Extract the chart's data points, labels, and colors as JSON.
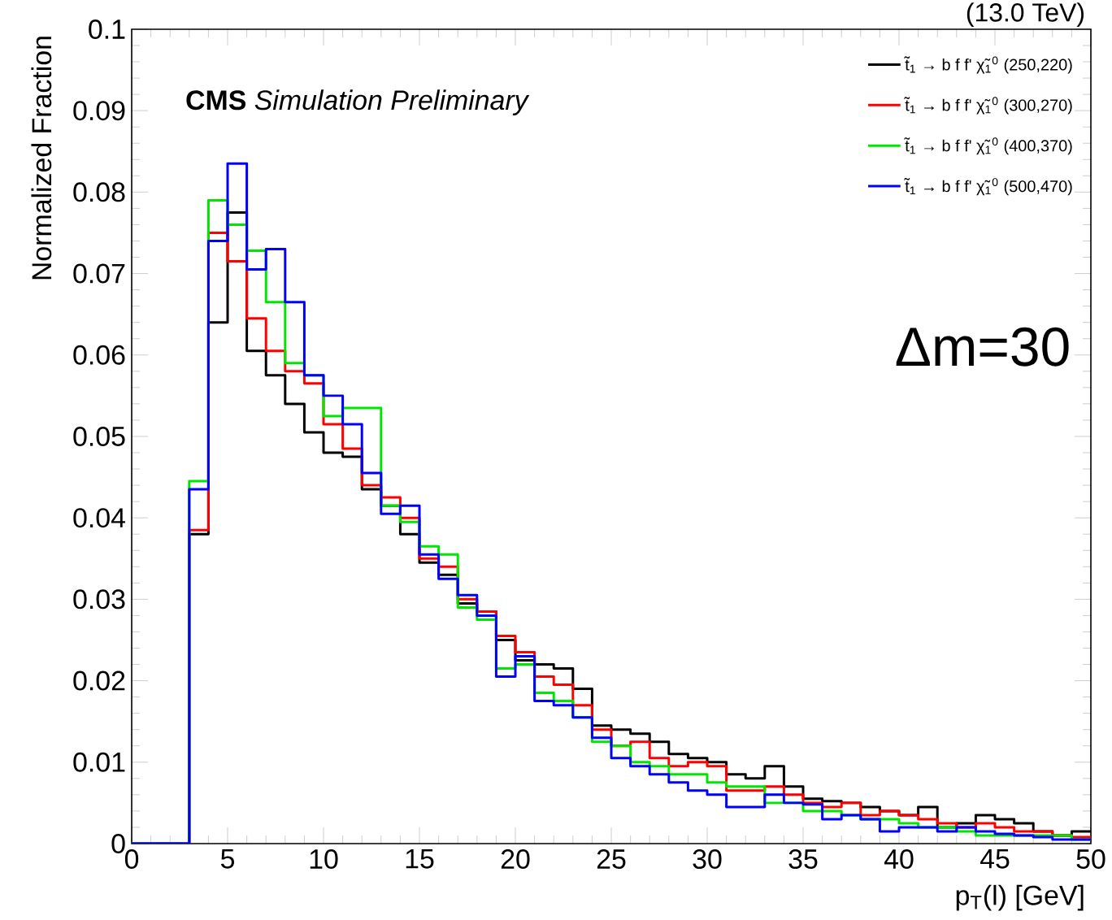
{
  "chart_data": {
    "type": "histogram",
    "xlabel": "p$_{T}$(l) [GeV]",
    "ylabel": "Normalized Fraction",
    "annotations": [
      "**CMS** *Simulation Preliminary*",
      "(13.0 TeV)",
      "Δm=30"
    ],
    "bins": [
      0,
      1,
      2,
      3,
      4,
      5,
      6,
      7,
      8,
      9,
      10,
      11,
      12,
      13,
      14,
      15,
      16,
      17,
      18,
      19,
      20,
      21,
      22,
      23,
      24,
      25,
      26,
      27,
      28,
      29,
      30,
      31,
      32,
      33,
      34,
      35,
      36,
      37,
      38,
      39,
      40,
      41,
      42,
      43,
      44,
      45,
      46,
      47,
      48,
      49,
      50
    ],
    "series": [
      {
        "name": "t̃$_{1}$ → b f f' χ̃$_{1}$$^{0}$ (250,220)",
        "color": "#000000",
        "values": [
          0,
          0,
          0,
          0.038,
          0.064,
          0.0775,
          0.0605,
          0.0575,
          0.054,
          0.0505,
          0.048,
          0.0475,
          0.0435,
          0.0415,
          0.038,
          0.0345,
          0.033,
          0.0295,
          0.0285,
          0.025,
          0.0225,
          0.022,
          0.0215,
          0.019,
          0.0145,
          0.014,
          0.0135,
          0.0125,
          0.011,
          0.0105,
          0.01,
          0.0085,
          0.008,
          0.0095,
          0.007,
          0.0055,
          0.0052,
          0.005,
          0.0045,
          0.004,
          0.0035,
          0.0045,
          0.002,
          0.0025,
          0.0035,
          0.003,
          0.0025,
          0.0015,
          0.001,
          0.0015
        ]
      },
      {
        "name": "t̃$_{1}$ → b f f' χ̃$_{1}$$^{0}$ (300,270)",
        "color": "#ff0000",
        "values": [
          0,
          0,
          0,
          0.0385,
          0.075,
          0.0715,
          0.0645,
          0.0605,
          0.058,
          0.0565,
          0.0515,
          0.0485,
          0.044,
          0.0425,
          0.04,
          0.035,
          0.034,
          0.03,
          0.0285,
          0.0255,
          0.0235,
          0.0205,
          0.0195,
          0.017,
          0.014,
          0.012,
          0.0125,
          0.0105,
          0.0095,
          0.01,
          0.0095,
          0.0065,
          0.0065,
          0.007,
          0.006,
          0.005,
          0.0045,
          0.005,
          0.0035,
          0.004,
          0.0035,
          0.003,
          0.0025,
          0.002,
          0.0025,
          0.002,
          0.0015,
          0.0015,
          0.001,
          0.0008
        ]
      },
      {
        "name": "t̃$_{1}$ → b f f' χ̃$_{1}$$^{0}$ (400,370)",
        "color": "#00e600",
        "values": [
          0,
          0,
          0,
          0.0445,
          0.079,
          0.076,
          0.0728,
          0.0665,
          0.059,
          0.0575,
          0.0525,
          0.0535,
          0.0535,
          0.0415,
          0.0395,
          0.0365,
          0.0355,
          0.029,
          0.0275,
          0.0215,
          0.022,
          0.0185,
          0.0175,
          0.0155,
          0.0125,
          0.012,
          0.01,
          0.0095,
          0.0085,
          0.0085,
          0.0075,
          0.007,
          0.007,
          0.005,
          0.005,
          0.004,
          0.004,
          0.0035,
          0.003,
          0.003,
          0.0025,
          0.002,
          0.002,
          0.0015,
          0.001,
          0.001,
          0.001,
          0.001,
          0.001,
          0.0005
        ]
      },
      {
        "name": "t̃$_{1}$ → b f f' χ̃$_{1}$$^{0}$ (500,470)",
        "color": "#0000ff",
        "values": [
          0,
          0,
          0,
          0.0435,
          0.074,
          0.0835,
          0.0705,
          0.073,
          0.0665,
          0.0575,
          0.055,
          0.0515,
          0.0455,
          0.0405,
          0.0415,
          0.0355,
          0.0325,
          0.0305,
          0.028,
          0.0205,
          0.023,
          0.0175,
          0.017,
          0.0155,
          0.013,
          0.0105,
          0.0095,
          0.0085,
          0.0075,
          0.0065,
          0.006,
          0.0045,
          0.0045,
          0.006,
          0.005,
          0.0048,
          0.003,
          0.0035,
          0.003,
          0.0015,
          0.002,
          0.002,
          0.0015,
          0.002,
          0.0015,
          0.0012,
          0.001,
          0.0008,
          0.0005,
          0.0005
        ]
      }
    ],
    "xlim": [
      0,
      50
    ],
    "ylim": [
      0,
      0.1
    ],
    "xticks": [
      0,
      5,
      10,
      15,
      20,
      25,
      30,
      35,
      40,
      45,
      50
    ],
    "yticks": [
      0,
      0.01,
      0.02,
      0.03,
      0.04,
      0.05,
      0.06,
      0.07,
      0.08,
      0.09,
      0.1
    ],
    "legend": "top right",
    "grid": false
  }
}
